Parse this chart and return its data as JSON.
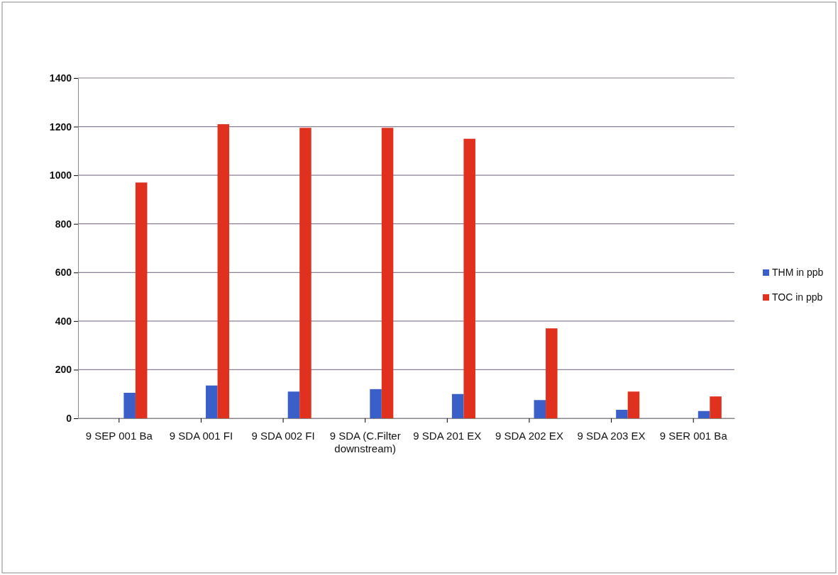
{
  "chart_data": {
    "type": "bar",
    "categories": [
      "9 SEP 001 Ba",
      "9 SDA 001 FI",
      "9 SDA 002 FI",
      "9 SDA (C.Filter downstream)",
      "9 SDA 201 EX",
      "9 SDA 202 EX",
      "9 SDA 203 EX",
      "9 SER 001 Ba"
    ],
    "series": [
      {
        "name": "THM in ppb",
        "color": "#3a5fc8",
        "values": [
          105,
          135,
          110,
          120,
          100,
          75,
          35,
          30
        ]
      },
      {
        "name": "TOC in ppb",
        "color": "#e0301e",
        "values": [
          970,
          1210,
          1195,
          1195,
          1150,
          370,
          110,
          90
        ]
      }
    ],
    "ylim": [
      0,
      1400
    ],
    "yticks": [
      0,
      200,
      400,
      600,
      800,
      1000,
      1200,
      1400
    ],
    "grid": "y",
    "legend": "right"
  }
}
